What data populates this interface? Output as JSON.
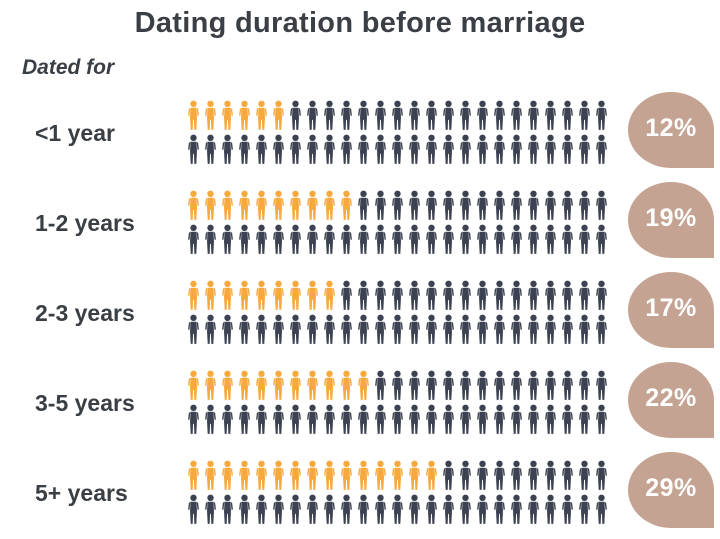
{
  "title": "Dating duration before marriage",
  "subtitle": "Dated for",
  "colors": {
    "highlight_orange": "#F8A93E",
    "icon_dark": "#3C4251",
    "badge_tan": "#C5A392",
    "text_dark": "#3A3F46",
    "badge_text": "#FFFFFF",
    "background": "#FFFFFF"
  },
  "chart_data": {
    "type": "pictogram",
    "title": "Dating duration before marriage",
    "axis_label": "Dated for",
    "categories": [
      "<1 year",
      "1-2 years",
      "2-3 years",
      "3-5 years",
      "5+ years"
    ],
    "values_percent": [
      12,
      19,
      17,
      22,
      29
    ],
    "value_labels": [
      "12%",
      "19%",
      "17%",
      "22%",
      "29%"
    ],
    "icons_total_per_category": 50,
    "icons_per_line": 25,
    "lines_per_category": 2,
    "highlighted_icon_counts": [
      6,
      10,
      9,
      11,
      15
    ],
    "icon_glyph": "person-icon",
    "legend_position": "none",
    "grid": false
  },
  "rows": [
    {
      "label": "<1 year",
      "percent_label": "12%",
      "highlighted": 6,
      "total": 50
    },
    {
      "label": "1-2 years",
      "percent_label": "19%",
      "highlighted": 10,
      "total": 50
    },
    {
      "label": "2-3 years",
      "percent_label": "17%",
      "highlighted": 9,
      "total": 50
    },
    {
      "label": "3-5 years",
      "percent_label": "22%",
      "highlighted": 11,
      "total": 50
    },
    {
      "label": "5+ years",
      "percent_label": "29%",
      "highlighted": 15,
      "total": 50
    }
  ]
}
